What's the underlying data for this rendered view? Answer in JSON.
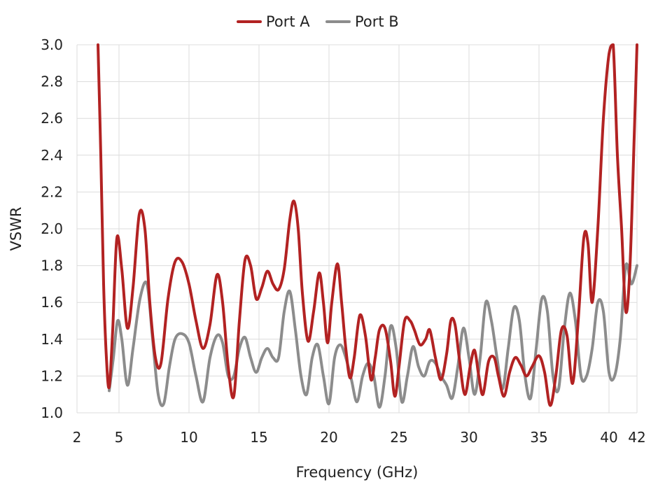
{
  "chart_data": {
    "type": "line",
    "xlabel": "Frequency (GHz)",
    "ylabel": "VSWR",
    "xlim": [
      2,
      42
    ],
    "ylim": [
      1.0,
      3.0
    ],
    "x_ticks": [
      2,
      5,
      10,
      15,
      20,
      25,
      30,
      35,
      40,
      42
    ],
    "y_ticks": [
      1.0,
      1.2,
      1.4,
      1.6,
      1.8,
      2.0,
      2.2,
      2.4,
      2.6,
      2.8,
      3.0
    ],
    "y_tick_labels": [
      "1.0",
      "1.2",
      "1.4",
      "1.6",
      "1.8",
      "2.0",
      "2.2",
      "2.4",
      "2.6",
      "2.8",
      "3.0"
    ],
    "grid": true,
    "legend_position": "top-center",
    "series": [
      {
        "name": "Port A",
        "color": "#b22222",
        "x": [
          3.5,
          3.7,
          3.9,
          4.1,
          4.3,
          4.55,
          4.85,
          5.2,
          5.6,
          6.0,
          6.45,
          6.85,
          7.2,
          7.6,
          8.0,
          8.5,
          9.0,
          9.5,
          10.0,
          10.5,
          11.0,
          11.5,
          12.0,
          12.4,
          12.8,
          13.2,
          13.6,
          14.0,
          14.4,
          14.8,
          15.2,
          15.6,
          16.0,
          16.4,
          16.8,
          17.2,
          17.5,
          17.8,
          18.1,
          18.5,
          18.9,
          19.3,
          19.6,
          19.9,
          20.2,
          20.6,
          20.9,
          21.2,
          21.5,
          21.8,
          22.2,
          22.6,
          23.0,
          23.3,
          23.6,
          24.0,
          24.4,
          24.7,
          25.0,
          25.4,
          25.8,
          26.1,
          26.5,
          26.9,
          27.2,
          27.6,
          28.0,
          28.4,
          28.7,
          29.0,
          29.3,
          29.7,
          30.1,
          30.4,
          30.7,
          31.0,
          31.4,
          31.8,
          32.1,
          32.5,
          32.9,
          33.3,
          33.7,
          34.1,
          34.5,
          35.0,
          35.4,
          35.8,
          36.2,
          36.6,
          37.0,
          37.4,
          37.8,
          38.2,
          38.5,
          38.8,
          39.2,
          39.6,
          40.0,
          40.3,
          40.6,
          40.9,
          41.2,
          41.5,
          41.8,
          42.0
        ],
        "values": [
          3.0,
          2.4,
          1.7,
          1.3,
          1.14,
          1.45,
          1.95,
          1.78,
          1.46,
          1.68,
          2.08,
          2.0,
          1.6,
          1.3,
          1.27,
          1.62,
          1.82,
          1.82,
          1.7,
          1.5,
          1.35,
          1.48,
          1.75,
          1.6,
          1.25,
          1.09,
          1.5,
          1.83,
          1.8,
          1.62,
          1.68,
          1.77,
          1.7,
          1.67,
          1.78,
          2.05,
          2.15,
          2.0,
          1.65,
          1.39,
          1.55,
          1.76,
          1.6,
          1.38,
          1.6,
          1.81,
          1.6,
          1.35,
          1.19,
          1.3,
          1.53,
          1.42,
          1.18,
          1.3,
          1.45,
          1.46,
          1.28,
          1.09,
          1.25,
          1.5,
          1.5,
          1.45,
          1.37,
          1.4,
          1.45,
          1.3,
          1.18,
          1.32,
          1.5,
          1.48,
          1.3,
          1.1,
          1.26,
          1.34,
          1.2,
          1.1,
          1.28,
          1.3,
          1.2,
          1.09,
          1.22,
          1.3,
          1.26,
          1.2,
          1.25,
          1.31,
          1.22,
          1.04,
          1.2,
          1.45,
          1.42,
          1.16,
          1.5,
          1.95,
          1.92,
          1.6,
          2.0,
          2.6,
          2.95,
          3.0,
          2.4,
          2.0,
          1.55,
          1.8,
          2.5,
          3.0
        ]
      },
      {
        "name": "Port B",
        "color": "#8c8c8c",
        "x": [
          4.3,
          4.6,
          4.9,
          5.2,
          5.6,
          6.0,
          6.5,
          7.0,
          7.4,
          7.8,
          8.2,
          8.6,
          9.0,
          9.5,
          10.0,
          10.5,
          11.0,
          11.5,
          12.0,
          12.4,
          12.8,
          13.2,
          13.6,
          14.0,
          14.4,
          14.8,
          15.2,
          15.6,
          16.0,
          16.4,
          16.8,
          17.2,
          17.6,
          18.0,
          18.4,
          18.8,
          19.2,
          19.6,
          20.0,
          20.4,
          20.8,
          21.2,
          21.6,
          22.0,
          22.4,
          22.8,
          23.2,
          23.6,
          24.0,
          24.4,
          24.8,
          25.2,
          25.6,
          26.0,
          26.4,
          26.8,
          27.2,
          27.6,
          28.0,
          28.4,
          28.8,
          29.2,
          29.6,
          30.0,
          30.4,
          30.8,
          31.2,
          31.6,
          32.0,
          32.4,
          32.8,
          33.2,
          33.6,
          34.0,
          34.4,
          34.8,
          35.2,
          35.6,
          36.0,
          36.4,
          36.8,
          37.2,
          37.6,
          38.0,
          38.4,
          38.8,
          39.2,
          39.6,
          40.0,
          40.4,
          40.8,
          41.2,
          41.6,
          42.0
        ],
        "values": [
          1.12,
          1.3,
          1.5,
          1.4,
          1.15,
          1.35,
          1.62,
          1.7,
          1.4,
          1.1,
          1.05,
          1.25,
          1.4,
          1.43,
          1.38,
          1.2,
          1.06,
          1.3,
          1.42,
          1.38,
          1.2,
          1.2,
          1.35,
          1.41,
          1.3,
          1.22,
          1.3,
          1.35,
          1.3,
          1.3,
          1.55,
          1.66,
          1.45,
          1.2,
          1.1,
          1.3,
          1.37,
          1.2,
          1.05,
          1.3,
          1.37,
          1.3,
          1.18,
          1.06,
          1.2,
          1.27,
          1.2,
          1.03,
          1.2,
          1.47,
          1.35,
          1.06,
          1.2,
          1.36,
          1.25,
          1.2,
          1.28,
          1.27,
          1.2,
          1.15,
          1.08,
          1.25,
          1.46,
          1.3,
          1.1,
          1.3,
          1.6,
          1.5,
          1.3,
          1.13,
          1.35,
          1.57,
          1.5,
          1.2,
          1.08,
          1.35,
          1.62,
          1.55,
          1.2,
          1.13,
          1.45,
          1.65,
          1.5,
          1.2,
          1.2,
          1.35,
          1.6,
          1.55,
          1.22,
          1.2,
          1.4,
          1.8,
          1.7,
          1.8
        ]
      }
    ]
  }
}
